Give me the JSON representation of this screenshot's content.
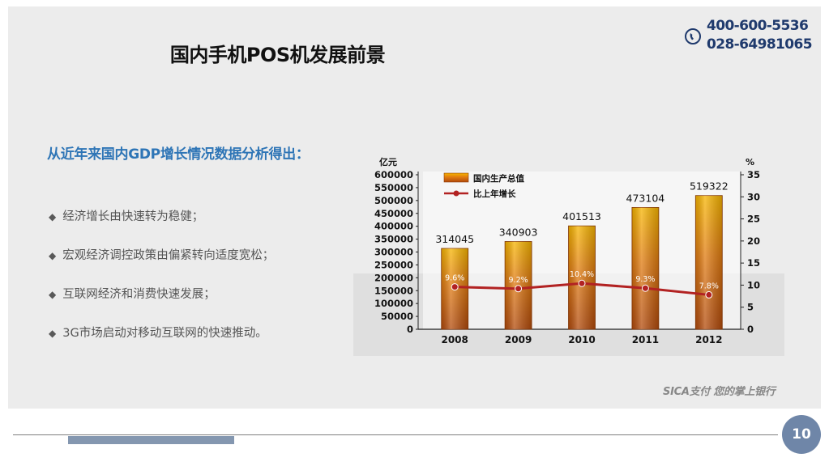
{
  "slide": {
    "title": "国内手机POS机发展前景",
    "phone_1": "400-600-5536",
    "phone_2": "028-64981065",
    "subtitle": "从近年来国内GDP增长情况数据分析得出：",
    "bullets": [
      "经济增长由快速转为稳健；",
      "宏观经济调控政策由偏紧转向适度宽松；",
      "互联网经济和消费快速发展；",
      "3G市场启动对移动互联网的快速推动。"
    ],
    "brand": "SICA支付 您的掌上银行",
    "page_number": "10"
  },
  "colors": {
    "title": "#111111",
    "subtitle": "#2e75b6",
    "phone": "#1f3a6d",
    "bar_top": "#f7b500",
    "bar_mid": "#e07b10",
    "bar_bottom": "#b24a0c",
    "line": "#b22222",
    "badge": "#6f86a8",
    "footer_bar": "#8497b0"
  },
  "chart_data": {
    "type": "bar",
    "categories": [
      "2008",
      "2009",
      "2010",
      "2011",
      "2012"
    ],
    "series": [
      {
        "name": "国内生产总值",
        "kind": "bar",
        "axis": "left",
        "values": [
          314045,
          340903,
          401513,
          473104,
          519322
        ]
      },
      {
        "name": "比上年增长",
        "kind": "line",
        "axis": "right",
        "values": [
          9.6,
          9.2,
          10.4,
          9.3,
          7.8
        ],
        "labels": [
          "9.6%",
          "9.2%",
          "10.4%",
          "9.3%",
          "7.8%"
        ]
      }
    ],
    "ylabel": "亿元",
    "y2label": "%",
    "ylim": [
      0,
      600000
    ],
    "y2lim": [
      0,
      35
    ],
    "yticks": [
      "600000",
      "550000",
      "500000",
      "450000",
      "400000",
      "350000",
      "300000",
      "250000",
      "200000",
      "150000",
      "100000",
      "50000",
      "0"
    ],
    "y2ticks": [
      "35",
      "30",
      "25",
      "20",
      "15",
      "10",
      "5",
      "0"
    ],
    "legend": "top-left"
  }
}
